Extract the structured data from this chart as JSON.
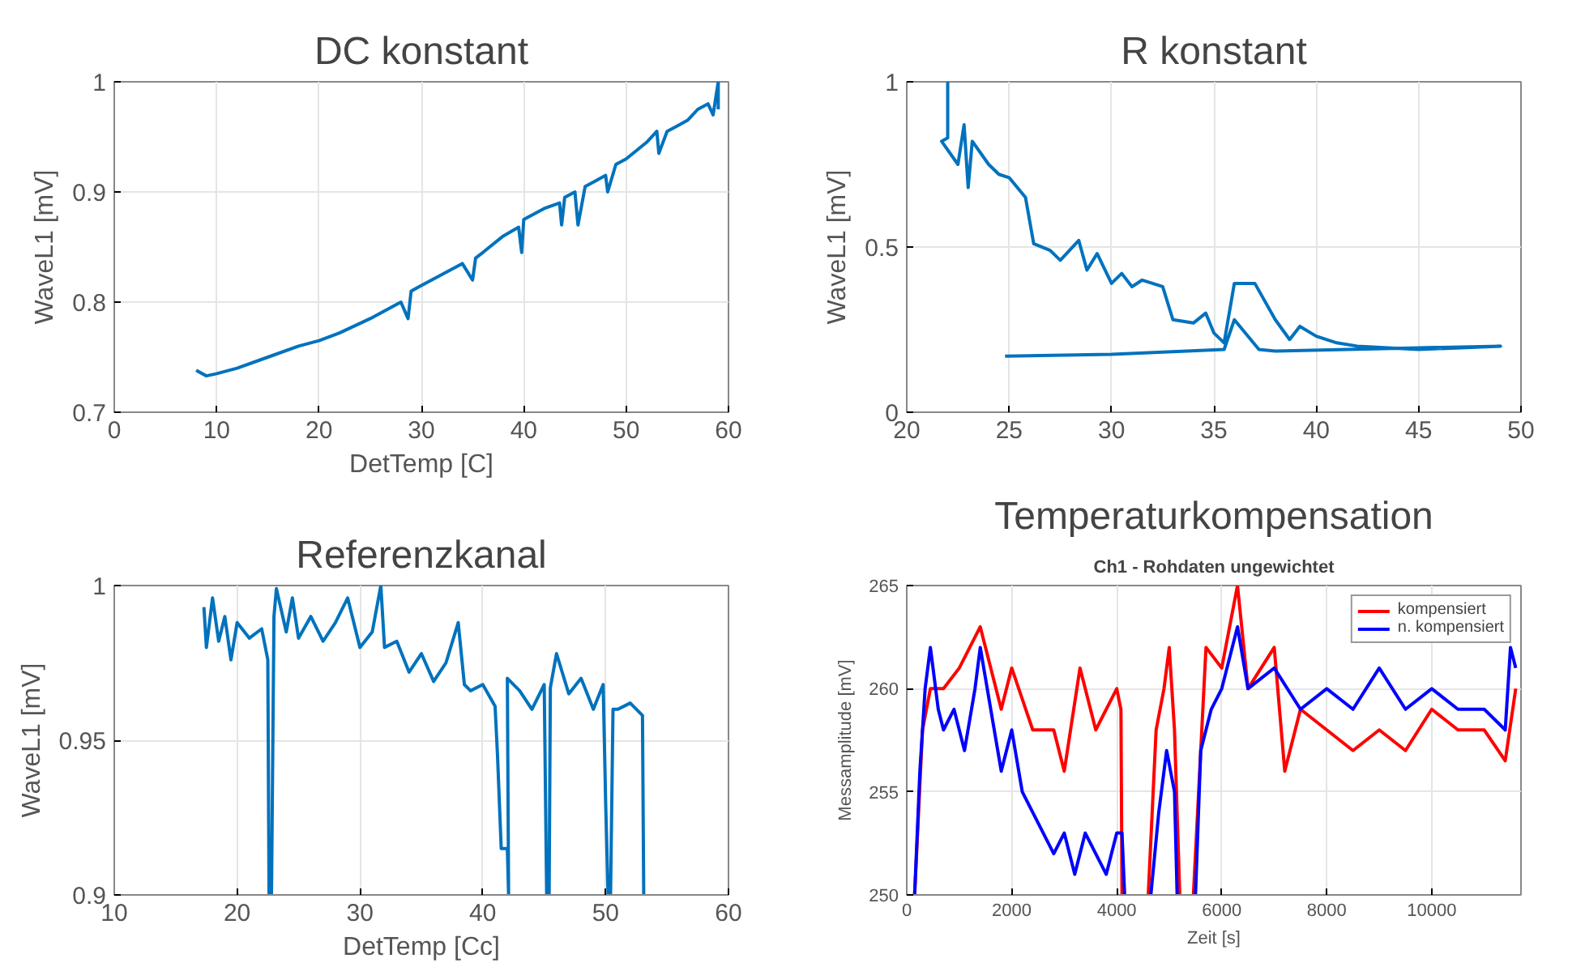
{
  "chart_data": [
    {
      "type": "line",
      "title": "DC konstant",
      "xlabel": "DetTemp [C]",
      "ylabel": "WaveL1 [mV]",
      "xlim": [
        0,
        60
      ],
      "ylim": [
        0.7,
        1
      ],
      "xticks": [
        0,
        10,
        20,
        30,
        40,
        50,
        60
      ],
      "yticks": [
        0.7,
        0.8,
        0.9,
        1
      ],
      "grid": true,
      "series": [
        {
          "color": "#0072bd",
          "x": [
            8,
            9,
            10,
            12,
            15,
            18,
            20,
            22,
            25,
            28,
            28.7,
            29,
            30,
            32,
            34,
            35,
            35.3,
            36,
            38,
            39.5,
            39.8,
            40,
            42,
            43.5,
            43.7,
            44,
            45,
            45.3,
            46,
            47,
            48,
            48.2,
            49,
            50,
            52,
            53,
            53.2,
            54,
            55,
            56,
            57,
            58,
            58.5,
            59,
            59
          ],
          "values": [
            0.738,
            0.733,
            0.735,
            0.74,
            0.75,
            0.76,
            0.765,
            0.772,
            0.785,
            0.8,
            0.785,
            0.81,
            0.815,
            0.825,
            0.835,
            0.82,
            0.84,
            0.845,
            0.86,
            0.868,
            0.845,
            0.875,
            0.885,
            0.89,
            0.87,
            0.895,
            0.9,
            0.87,
            0.905,
            0.91,
            0.915,
            0.9,
            0.925,
            0.93,
            0.945,
            0.955,
            0.935,
            0.955,
            0.96,
            0.965,
            0.975,
            0.98,
            0.97,
            1.0,
            0.975
          ]
        }
      ]
    },
    {
      "type": "line",
      "title": "R konstant",
      "ylabel": "WaveL1 [mV]",
      "xlim": [
        20,
        50
      ],
      "ylim": [
        0,
        1
      ],
      "xticks": [
        20,
        25,
        30,
        35,
        40,
        45,
        50
      ],
      "yticks": [
        0,
        0.5,
        1
      ],
      "grid": true,
      "series": [
        {
          "color": "#0072bd",
          "x": [
            22,
            22,
            21.7,
            22.5,
            22.8,
            23,
            23.2,
            24,
            24.5,
            25,
            25.8,
            26.2,
            27,
            27.5,
            28.4,
            28.8,
            29.3,
            30,
            30.5,
            31,
            31.5,
            32.5,
            33,
            34,
            34.6,
            35,
            35.5,
            36,
            37,
            38,
            38.7,
            39.2,
            40,
            41,
            42,
            45,
            49,
            45,
            38,
            37.2,
            36,
            35.5,
            30,
            24.8
          ],
          "values": [
            1,
            0.83,
            0.82,
            0.75,
            0.87,
            0.68,
            0.82,
            0.75,
            0.72,
            0.71,
            0.65,
            0.51,
            0.49,
            0.46,
            0.52,
            0.43,
            0.48,
            0.39,
            0.42,
            0.38,
            0.4,
            0.38,
            0.28,
            0.27,
            0.3,
            0.24,
            0.21,
            0.39,
            0.39,
            0.28,
            0.22,
            0.26,
            0.23,
            0.21,
            0.2,
            0.19,
            0.2,
            0.195,
            0.185,
            0.19,
            0.28,
            0.19,
            0.175,
            0.17
          ]
        }
      ]
    },
    {
      "type": "line",
      "title": "Referenzkanal",
      "xlabel": "DetTemp [Cc]",
      "ylabel": "WaveL1 [mV]",
      "xlim": [
        10,
        60
      ],
      "ylim": [
        0.9,
        1
      ],
      "xticks": [
        10,
        20,
        30,
        40,
        50,
        60
      ],
      "yticks": [
        0.9,
        0.95,
        1
      ],
      "grid": true,
      "series": [
        {
          "color": "#0072bd",
          "x": [
            17.3,
            17.5,
            18,
            18.5,
            19,
            19.5,
            20,
            21,
            22,
            22.5,
            22.6,
            22.8,
            23,
            23.2,
            24,
            24.5,
            25,
            26,
            27,
            28,
            29,
            30,
            31,
            31.7,
            32,
            33,
            34,
            35,
            36,
            37,
            38,
            38.5,
            39,
            40,
            41,
            41.2,
            41.5,
            42,
            42.1,
            42,
            43,
            44,
            45,
            45.2,
            45.4,
            45.5,
            46,
            47,
            48,
            49,
            49.8,
            50,
            50.2,
            50.4,
            50.6,
            51,
            52,
            53,
            53.1
          ],
          "values": [
            0.993,
            0.98,
            0.996,
            0.982,
            0.99,
            0.976,
            0.988,
            0.983,
            0.986,
            0.976,
            0.9,
            0.9,
            0.99,
            0.999,
            0.985,
            0.996,
            0.983,
            0.99,
            0.982,
            0.988,
            0.996,
            0.98,
            0.985,
            1.0,
            0.98,
            0.982,
            0.972,
            0.978,
            0.969,
            0.975,
            0.988,
            0.968,
            0.966,
            0.968,
            0.961,
            0.945,
            0.915,
            0.915,
            0.9,
            0.97,
            0.966,
            0.96,
            0.968,
            0.9,
            0.9,
            0.967,
            0.978,
            0.965,
            0.97,
            0.96,
            0.968,
            0.93,
            0.9,
            0.9,
            0.96,
            0.96,
            0.962,
            0.958,
            0.9
          ]
        }
      ]
    },
    {
      "type": "line",
      "title": "Temperaturkompensation",
      "subtitle": "Ch1 - Rohdaten ungewichtet",
      "xlabel": "Zeit [s]",
      "ylabel": "Messamplitude [mV]",
      "xlim": [
        0,
        11700
      ],
      "ylim": [
        250,
        265
      ],
      "xticks": [
        0,
        2000,
        4000,
        6000,
        8000,
        10000
      ],
      "yticks": [
        250,
        255,
        260,
        265
      ],
      "grid": true,
      "legend": "top right",
      "series": [
        {
          "name": "kompensiert",
          "color": "#ff0000",
          "x": [
            150,
            300,
            450,
            700,
            1000,
            1400,
            1800,
            2000,
            2400,
            2800,
            3000,
            3300,
            3600,
            4000,
            4080,
            4100,
            4400,
            4600,
            4750,
            4900,
            5000,
            5100,
            5200,
            5300,
            5460,
            5700,
            6000,
            6300,
            6500,
            7000,
            7200,
            7500,
            8000,
            8500,
            9000,
            9500,
            10000,
            10500,
            11000,
            11400,
            11600
          ],
          "values": [
            250,
            258,
            260,
            260,
            261,
            263,
            259,
            261,
            258,
            258,
            256,
            261,
            258,
            260,
            259,
            250,
            null,
            250,
            258,
            260,
            262,
            258,
            250,
            null,
            250,
            262,
            261,
            265,
            260,
            262,
            256,
            259,
            258,
            257,
            258,
            257,
            259,
            258,
            258,
            256.5,
            260
          ]
        },
        {
          "name": "n. kompensiert",
          "color": "#0000ff",
          "x": [
            150,
            250,
            350,
            450,
            500,
            600,
            700,
            900,
            1100,
            1300,
            1400,
            1600,
            1800,
            2000,
            2200,
            2400,
            2600,
            2800,
            3000,
            3200,
            3400,
            3600,
            3800,
            4000,
            4100,
            4150,
            4400,
            4650,
            4800,
            4950,
            5100,
            5150,
            5300,
            5500,
            5600,
            5800,
            6000,
            6300,
            6500,
            7000,
            7500,
            8000,
            8500,
            9000,
            9500,
            10000,
            10500,
            11000,
            11400,
            11500,
            11600
          ],
          "values": [
            250,
            256,
            260,
            262,
            261,
            259,
            258,
            259,
            257,
            260,
            262,
            259,
            256,
            258,
            255,
            254,
            253,
            252,
            253,
            251,
            253,
            252,
            251,
            253,
            253,
            250,
            null,
            250,
            254,
            257,
            255,
            250,
            null,
            250,
            257,
            259,
            260,
            263,
            260,
            261,
            259,
            260,
            259,
            261,
            259,
            260,
            259,
            259,
            258,
            262,
            261
          ]
        }
      ]
    }
  ]
}
